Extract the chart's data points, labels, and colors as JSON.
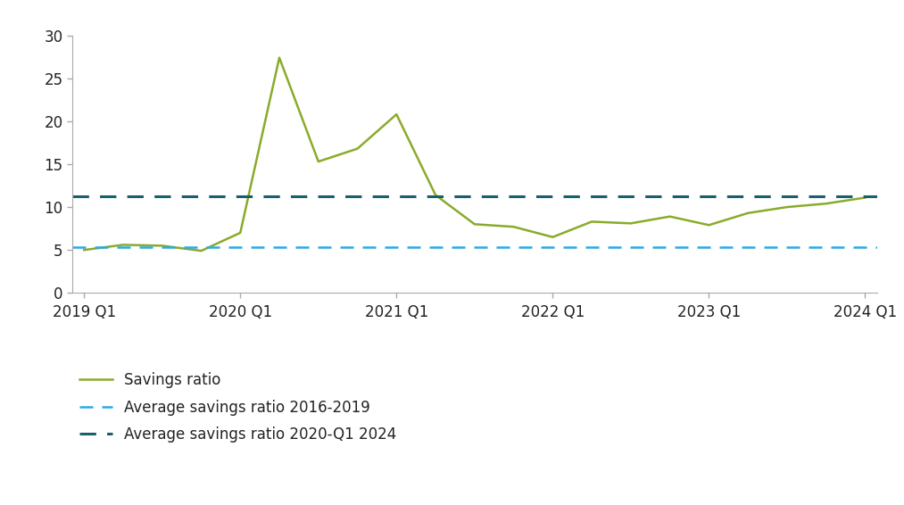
{
  "x_labels": [
    "2019 Q1",
    "2020 Q1",
    "2021 Q1",
    "2022 Q1",
    "2023 Q1",
    "2024 Q1"
  ],
  "x_positions": [
    0,
    4,
    8,
    12,
    16,
    20
  ],
  "savings_ratio_x": [
    0,
    1,
    2,
    3,
    4,
    5,
    6,
    7,
    8,
    9,
    10,
    11,
    12,
    13,
    14,
    15,
    16,
    17,
    18,
    19,
    20
  ],
  "savings_ratio_y": [
    5.0,
    5.6,
    5.5,
    4.9,
    7.0,
    27.4,
    15.3,
    16.8,
    20.8,
    11.4,
    8.0,
    7.7,
    6.5,
    8.3,
    8.1,
    8.9,
    7.9,
    9.3,
    10.0,
    10.4,
    11.1
  ],
  "avg_2016_2019": 5.3,
  "avg_2020_2024": 11.3,
  "savings_ratio_color": "#8aab2a",
  "avg_2016_2019_color": "#29abe2",
  "avg_2020_2024_color": "#1a5f6e",
  "ylim": [
    0,
    30
  ],
  "yticks": [
    0,
    5,
    10,
    15,
    20,
    25,
    30
  ],
  "legend_labels": [
    "Savings ratio",
    "Average savings ratio 2016-2019",
    "Average savings ratio 2020-Q1 2024"
  ],
  "background_color": "#ffffff",
  "spine_color": "#aaaaaa",
  "tick_color": "#aaaaaa",
  "label_color": "#222222",
  "font_size": 12
}
